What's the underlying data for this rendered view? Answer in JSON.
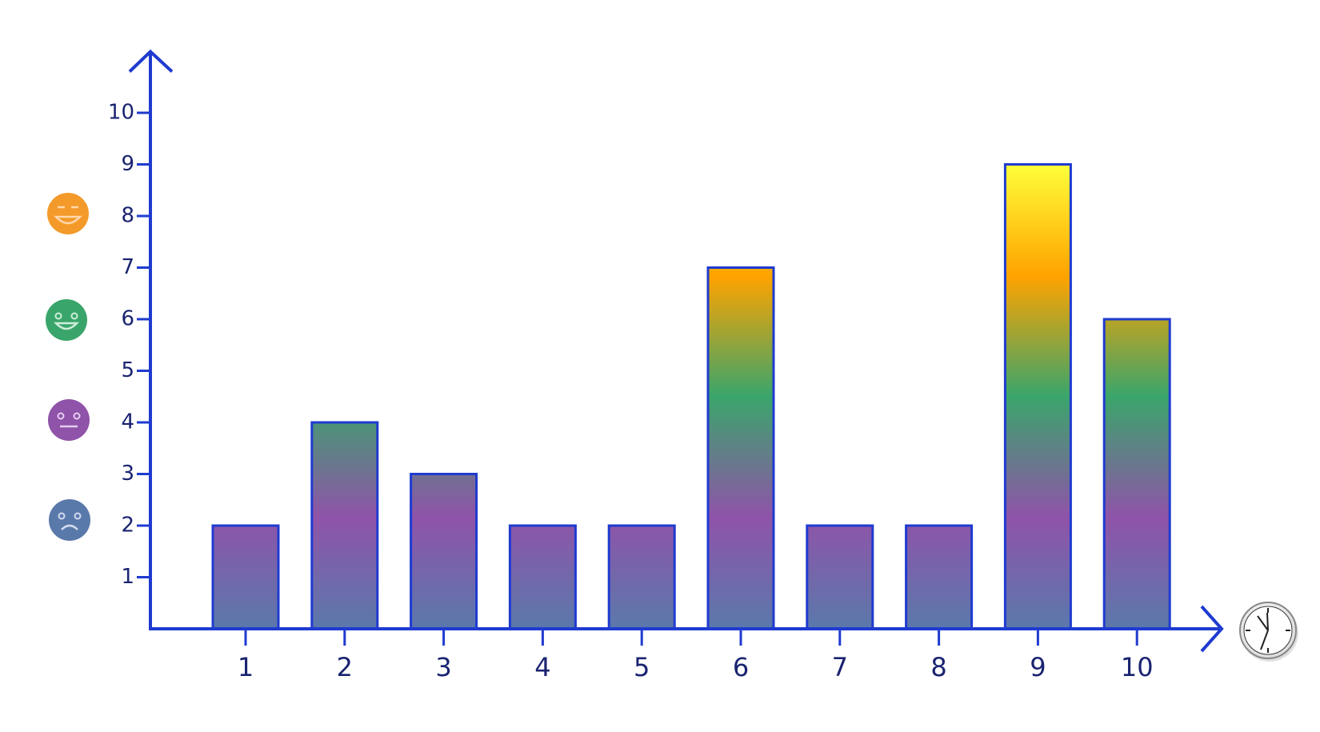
{
  "chart_data": {
    "type": "bar",
    "categories": [
      "1",
      "2",
      "3",
      "4",
      "5",
      "6",
      "7",
      "8",
      "9",
      "10"
    ],
    "values": [
      2,
      4,
      3,
      2,
      2,
      7,
      2,
      2,
      9,
      6
    ],
    "ylim": [
      0,
      11
    ],
    "yticks": [
      1,
      2,
      3,
      4,
      5,
      6,
      7,
      8,
      9,
      10
    ],
    "gradient_colors": [
      "#5a79ab",
      "#8f53a9",
      "#3aa56b",
      "#ffa300",
      "#ffff3a"
    ],
    "axis_color": "#1f3bd0"
  }
}
